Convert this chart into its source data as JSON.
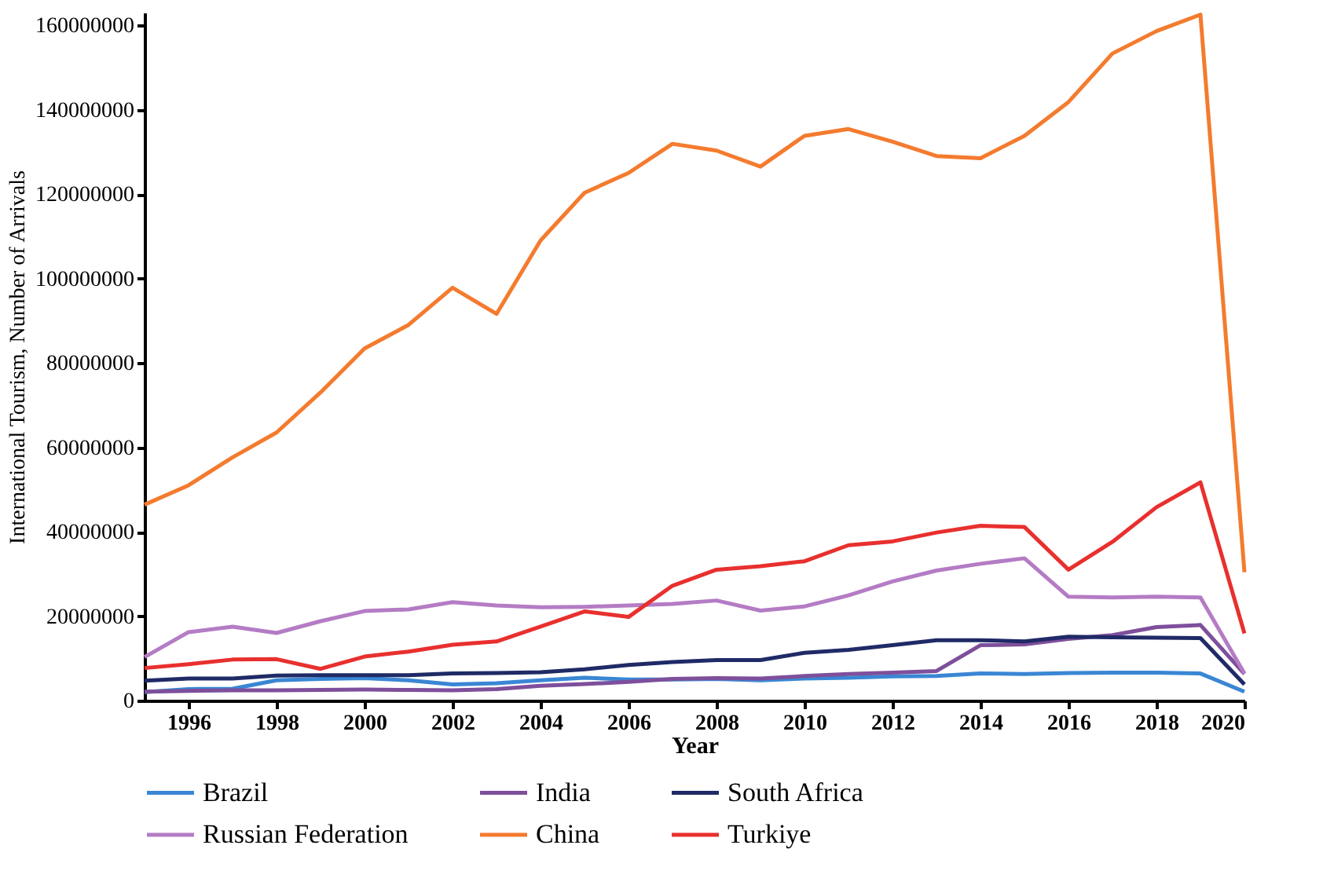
{
  "chart_data": {
    "type": "line",
    "xlabel": "Year",
    "ylabel": "International Tourism, Number of Arrivals",
    "x": [
      1995,
      1996,
      1997,
      1998,
      1999,
      2000,
      2001,
      2002,
      2003,
      2004,
      2005,
      2006,
      2007,
      2008,
      2009,
      2010,
      2011,
      2012,
      2013,
      2014,
      2015,
      2016,
      2017,
      2018,
      2019,
      2020
    ],
    "series": [
      {
        "name": "Brazil",
        "color": "#3a86d4",
        "values": [
          2000000,
          2700000,
          2800000,
          4800000,
          5100000,
          5300000,
          4800000,
          3800000,
          4100000,
          4800000,
          5400000,
          5000000,
          5000000,
          5100000,
          4800000,
          5200000,
          5400000,
          5700000,
          5800000,
          6400000,
          6300000,
          6500000,
          6600000,
          6600000,
          6400000,
          2100000
        ]
      },
      {
        "name": "India",
        "color": "#7e4f9b",
        "values": [
          2100000,
          2300000,
          2400000,
          2400000,
          2500000,
          2600000,
          2500000,
          2400000,
          2700000,
          3500000,
          3900000,
          4400000,
          5100000,
          5300000,
          5200000,
          5800000,
          6300000,
          6600000,
          7000000,
          13100000,
          13300000,
          14600000,
          15500000,
          17400000,
          17900000,
          6300000
        ]
      },
      {
        "name": "South Africa",
        "color": "#1f2a66",
        "values": [
          4700000,
          5200000,
          5200000,
          5900000,
          6000000,
          6000000,
          6000000,
          6400000,
          6500000,
          6700000,
          7400000,
          8400000,
          9100000,
          9600000,
          9600000,
          11300000,
          12000000,
          13100000,
          14300000,
          14300000,
          14000000,
          15100000,
          15000000,
          14900000,
          14800000,
          3800000
        ]
      },
      {
        "name": "Russian Federation",
        "color": "#b47cc4",
        "values": [
          10300000,
          16200000,
          17500000,
          16000000,
          18800000,
          21200000,
          21600000,
          23300000,
          22500000,
          22100000,
          22200000,
          22500000,
          22900000,
          23700000,
          21300000,
          22300000,
          24900000,
          28200000,
          30800000,
          32400000,
          33700000,
          24600000,
          24400000,
          24600000,
          24400000,
          6400000
        ]
      },
      {
        "name": "China",
        "color": "#f47b2e",
        "values": [
          46400000,
          51000000,
          57600000,
          63500000,
          73000000,
          83400000,
          89000000,
          97800000,
          91600000,
          109000000,
          120300000,
          125000000,
          131900000,
          130300000,
          126500000,
          133800000,
          135400000,
          132400000,
          129000000,
          128500000,
          133800000,
          141800000,
          153300000,
          158600000,
          162500000,
          30400000
        ]
      },
      {
        "name": "Turkiye",
        "color": "#e8302e",
        "values": [
          7700000,
          8600000,
          9700000,
          9800000,
          7500000,
          10400000,
          11600000,
          13200000,
          14000000,
          17500000,
          21100000,
          19800000,
          27200000,
          31000000,
          31800000,
          33000000,
          36800000,
          37700000,
          39800000,
          41400000,
          41100000,
          31000000,
          37600000,
          45800000,
          51700000,
          15900000
        ]
      }
    ],
    "xlim": [
      1995,
      2020
    ],
    "xticks": [
      1996,
      1998,
      2000,
      2002,
      2004,
      2006,
      2008,
      2010,
      2012,
      2014,
      2016,
      2018,
      2020
    ],
    "ylim": [
      0,
      163000000
    ],
    "yticks": [
      0,
      20000000,
      40000000,
      60000000,
      80000000,
      100000000,
      120000000,
      140000000,
      160000000
    ],
    "grid": false,
    "legend": "bottom",
    "line_style": "solid"
  }
}
